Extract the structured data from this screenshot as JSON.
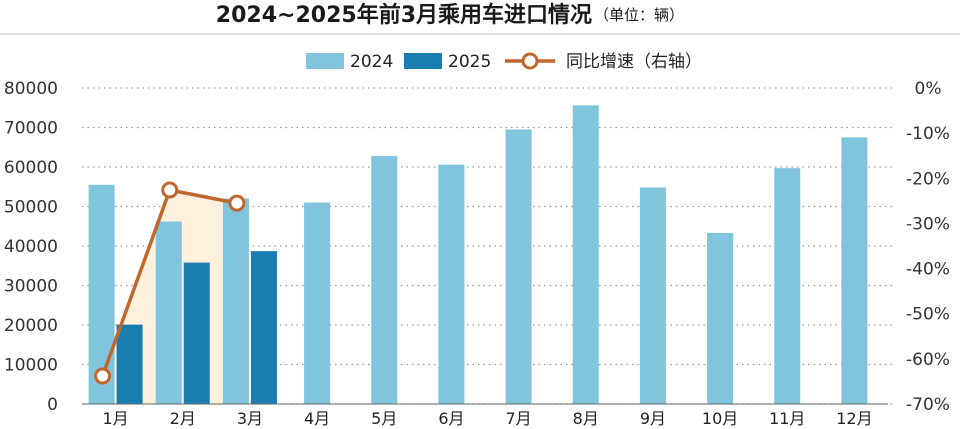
{
  "chart_data": {
    "type": "bar",
    "title": "2024~2025年前3月乘用车进口情况",
    "unit_note": "（单位：辆）",
    "categories": [
      "1月",
      "2月",
      "3月",
      "4月",
      "5月",
      "6月",
      "7月",
      "8月",
      "9月",
      "10月",
      "11月",
      "12月"
    ],
    "series": [
      {
        "name": "2024",
        "type": "bar",
        "color": "#80c4de",
        "values": [
          55500,
          46200,
          52000,
          51000,
          62800,
          60600,
          69500,
          75600,
          54800,
          43300,
          59700,
          67500
        ]
      },
      {
        "name": "2025",
        "type": "bar",
        "color": "#1a7db1",
        "values": [
          20100,
          35800,
          38700,
          null,
          null,
          null,
          null,
          null,
          null,
          null,
          null,
          null
        ]
      },
      {
        "name": "同比增速（右轴）",
        "type": "line",
        "axis": "right",
        "color": "#c0672e",
        "values": [
          -63.8,
          -22.6,
          -25.5,
          null,
          null,
          null,
          null,
          null,
          null,
          null,
          null,
          null
        ]
      }
    ],
    "y_left": {
      "min": 0,
      "max": 80000,
      "ticks": [
        "0",
        "10000",
        "20000",
        "30000",
        "40000",
        "50000",
        "60000",
        "70000",
        "80000"
      ]
    },
    "y_right": {
      "min": -70,
      "max": 0,
      "ticks": [
        "0%",
        "-10%",
        "-20%",
        "-30%",
        "-40%",
        "-50%",
        "-60%",
        "-70%"
      ]
    },
    "grid": "dotted-horizontal",
    "legend_position": "top",
    "highlight_fill": "#fdf0dc"
  }
}
